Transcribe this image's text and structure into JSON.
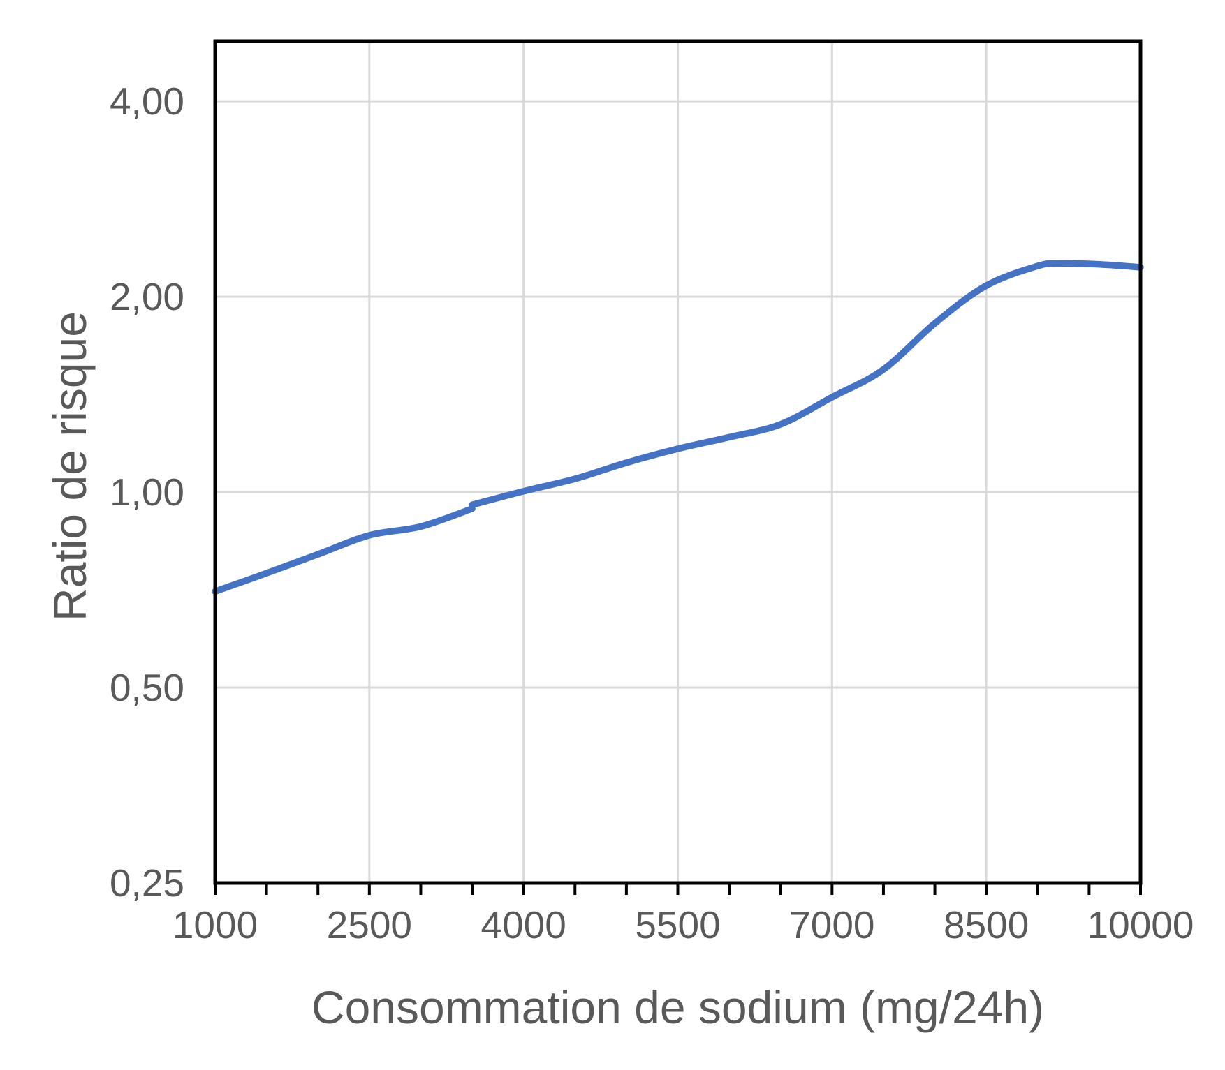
{
  "chart_data": {
    "type": "line",
    "title": "",
    "xlabel": "Consommation de sodium (mg/24h)",
    "ylabel": "Ratio de risque",
    "xlim": [
      1000,
      10000
    ],
    "ylim": [
      0.25,
      4.95
    ],
    "xscale": "linear",
    "yscale": "log2",
    "grid": true,
    "legend_position": "none",
    "x_ticks": {
      "values": [
        1000,
        2500,
        4000,
        5500,
        7000,
        8500,
        10000
      ],
      "labels": [
        "1000",
        "2500",
        "4000",
        "5500",
        "7000",
        "8500",
        "10000"
      ]
    },
    "x_minor_tick_step": 500,
    "y_ticks": {
      "values": [
        0.25,
        0.5,
        1,
        2,
        4
      ],
      "labels": [
        "0,25",
        "0,50",
        "1,00",
        "2,00",
        "4,00"
      ]
    },
    "series": [
      {
        "name": "Ratio de risque",
        "color": "#4472C4",
        "note": "hazard-ratio curve vs 24h sodium intake; reference HR 1.00 at 4000 mg; small join-notch artifact at ~3500 mg; peak ~2.25 near 9200 mg",
        "segments": [
          [
            [
              1000,
              0.703
            ],
            [
              1500,
              0.75
            ],
            [
              2000,
              0.802
            ],
            [
              2500,
              0.858
            ],
            [
              3000,
              0.885
            ],
            [
              3500,
              0.943
            ]
          ],
          [
            [
              3500,
              0.956
            ],
            [
              4000,
              1.003
            ],
            [
              4500,
              1.048
            ],
            [
              5000,
              1.11
            ],
            [
              5500,
              1.166
            ],
            [
              6000,
              1.215
            ],
            [
              6500,
              1.272
            ],
            [
              7000,
              1.4
            ],
            [
              7500,
              1.545
            ],
            [
              8000,
              1.82
            ],
            [
              8500,
              2.08
            ],
            [
              9000,
              2.23
            ],
            [
              9200,
              2.25
            ],
            [
              9600,
              2.243
            ],
            [
              10000,
              2.22
            ]
          ]
        ]
      }
    ],
    "colors": {
      "line": "#4472C4",
      "grid": "#D9D9D9",
      "axis": "#000000",
      "text": "#595959",
      "background": "#FFFFFF"
    }
  }
}
